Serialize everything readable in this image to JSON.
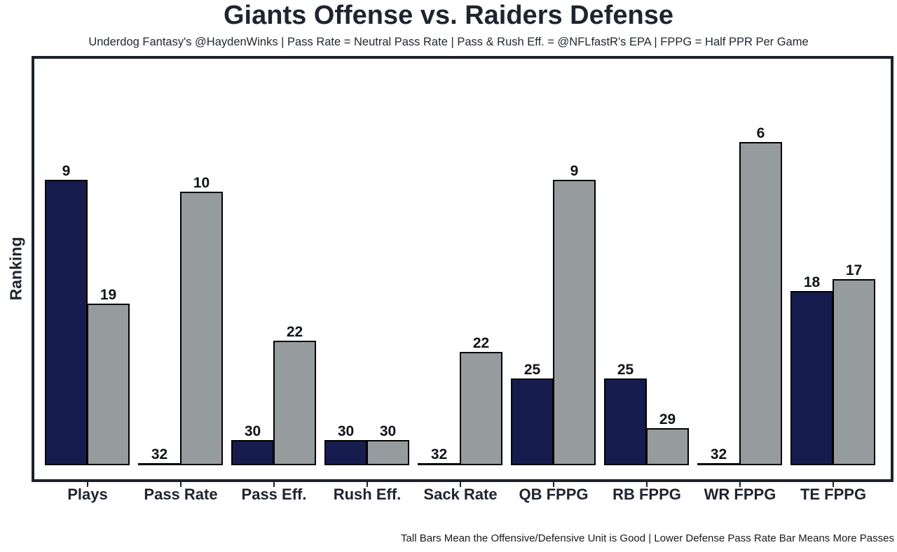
{
  "chart_data": {
    "type": "bar",
    "title": "Giants Offense vs. Raiders Defense",
    "subtitle": "Underdog Fantasy's @HaydenWinks | Pass Rate = Neutral Pass Rate | Pass & Rush Eff. = @NFLfastR's EPA | FPPG = Half PPR Per Game",
    "footnote": "Tall Bars Mean the Offensive/Defensive Unit is Good | Lower Defense Pass Rate Bar Means More Passes",
    "ylabel": "Ranking",
    "xlabel": "",
    "categories": [
      "Plays",
      "Pass Rate",
      "Pass Eff.",
      "Rush Eff.",
      "Sack Rate",
      "QB FPPG",
      "RB FPPG",
      "WR FPPG",
      "TE FPPG"
    ],
    "series": [
      {
        "name": "Giants Offense",
        "color": "#161c4e",
        "values": [
          9,
          32,
          30,
          30,
          32,
          25,
          25,
          32,
          18
        ]
      },
      {
        "name": "Raiders Defense",
        "color": "#969c9e",
        "values": [
          19,
          10,
          22,
          30,
          22,
          9,
          29,
          6,
          17
        ]
      }
    ],
    "value_meaning": "NFL ranking out of 32 (1 = best); taller bar = better rank",
    "ylim": [
      32,
      1
    ],
    "bar_labels": true,
    "legend": "none",
    "grid": false,
    "colors": {
      "offense_bar": "#161c4e",
      "defense_bar": "#969c9e",
      "bar_outline": "#000000",
      "frame": "#1c212a",
      "text": "#1f242e",
      "background": "#ffffff"
    }
  }
}
